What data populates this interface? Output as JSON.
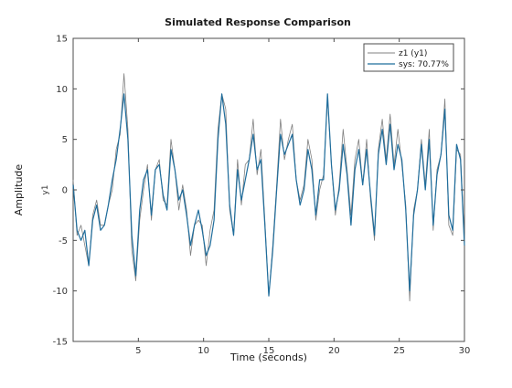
{
  "chart_data": {
    "type": "line",
    "title": "Simulated Response Comparison",
    "xlabel": "Time (seconds)",
    "ylabel": "Amplitude",
    "channel_label": "y1",
    "xlim": [
      0,
      30
    ],
    "ylim": [
      -15,
      15
    ],
    "xticks": [
      5,
      10,
      15,
      20,
      25,
      30
    ],
    "yticks": [
      -15,
      -10,
      -5,
      0,
      5,
      10,
      15
    ],
    "grid": false,
    "legend_position": "top-right",
    "series": [
      {
        "name": "z1 (y1)",
        "color": "#808080",
        "x": [
          0,
          0.3,
          0.6,
          0.9,
          1.2,
          1.5,
          1.8,
          2.1,
          2.4,
          2.7,
          3.0,
          3.3,
          3.6,
          3.9,
          4.2,
          4.5,
          4.8,
          5.1,
          5.4,
          5.7,
          6.0,
          6.3,
          6.6,
          6.9,
          7.2,
          7.5,
          7.8,
          8.1,
          8.4,
          8.7,
          9.0,
          9.3,
          9.6,
          9.9,
          10.2,
          10.5,
          10.8,
          11.1,
          11.4,
          11.7,
          12.0,
          12.3,
          12.6,
          12.9,
          13.2,
          13.5,
          13.8,
          14.1,
          14.4,
          14.7,
          15.0,
          15.3,
          15.6,
          15.9,
          16.2,
          16.5,
          16.8,
          17.1,
          17.4,
          17.7,
          18.0,
          18.3,
          18.6,
          18.9,
          19.2,
          19.5,
          19.8,
          20.1,
          20.4,
          20.7,
          21.0,
          21.3,
          21.6,
          21.9,
          22.2,
          22.5,
          22.8,
          23.1,
          23.4,
          23.7,
          24.0,
          24.3,
          24.6,
          24.9,
          25.2,
          25.5,
          25.8,
          26.1,
          26.4,
          26.7,
          27.0,
          27.3,
          27.6,
          27.9,
          28.2,
          28.5,
          28.8,
          29.1,
          29.4,
          29.7,
          30.0
        ],
        "y": [
          1,
          -4.5,
          -3.5,
          -5.5,
          -7.5,
          -2.5,
          -1,
          -3.5,
          -3.5,
          -1.5,
          0,
          4,
          5.5,
          11.5,
          6,
          -6,
          -9,
          -3,
          0,
          2.5,
          -3,
          2,
          3,
          -1,
          -1.5,
          5,
          2,
          -2,
          0.5,
          -2,
          -6.5,
          -3.5,
          -3,
          -3.5,
          -7.5,
          -4,
          -2,
          6,
          9.5,
          8,
          -2,
          -4.5,
          3,
          -1.5,
          2.5,
          3,
          7,
          1.5,
          4,
          -3,
          -10.5,
          -5.5,
          0.5,
          7,
          3,
          5,
          6.5,
          1,
          -1,
          0.5,
          5,
          3,
          -3,
          0,
          1.5,
          9,
          2.5,
          -2.5,
          0.5,
          6,
          2,
          -2.5,
          3,
          5,
          0.5,
          5,
          -1,
          -5,
          4,
          7,
          3,
          7.5,
          2.5,
          6,
          2.5,
          -1.5,
          -11,
          -2,
          0,
          5,
          0.5,
          6,
          -4,
          2,
          3.5,
          9,
          -3.5,
          -4.5,
          4,
          3.5,
          -5
        ]
      },
      {
        "name": "sys: 70.77%",
        "color": "#1f6d9c",
        "x": [
          0,
          0.3,
          0.6,
          0.9,
          1.2,
          1.5,
          1.8,
          2.1,
          2.4,
          2.7,
          3.0,
          3.3,
          3.6,
          3.9,
          4.2,
          4.5,
          4.8,
          5.1,
          5.4,
          5.7,
          6.0,
          6.3,
          6.6,
          6.9,
          7.2,
          7.5,
          7.8,
          8.1,
          8.4,
          8.7,
          9.0,
          9.3,
          9.6,
          9.9,
          10.2,
          10.5,
          10.8,
          11.1,
          11.4,
          11.7,
          12.0,
          12.3,
          12.6,
          12.9,
          13.2,
          13.5,
          13.8,
          14.1,
          14.4,
          14.7,
          15.0,
          15.3,
          15.6,
          15.9,
          16.2,
          16.5,
          16.8,
          17.1,
          17.4,
          17.7,
          18.0,
          18.3,
          18.6,
          18.9,
          19.2,
          19.5,
          19.8,
          20.1,
          20.4,
          20.7,
          21.0,
          21.3,
          21.6,
          21.9,
          22.2,
          22.5,
          22.8,
          23.1,
          23.4,
          23.7,
          24.0,
          24.3,
          24.6,
          24.9,
          25.2,
          25.5,
          25.8,
          26.1,
          26.4,
          26.7,
          27.0,
          27.3,
          27.6,
          27.9,
          28.2,
          28.5,
          28.8,
          29.1,
          29.4,
          29.7,
          30.0
        ],
        "y": [
          0.5,
          -4,
          -5,
          -4,
          -7.5,
          -3,
          -1.5,
          -4,
          -3.5,
          -1.5,
          1,
          3,
          6,
          9.5,
          5,
          -4.5,
          -8.5,
          -2,
          1,
          2,
          -2.5,
          2,
          2.5,
          -0.5,
          -2,
          4,
          2,
          -1,
          0,
          -2.5,
          -5.5,
          -3.5,
          -2,
          -4,
          -6.5,
          -5.5,
          -3,
          5,
          9.5,
          6.5,
          -1.5,
          -4.5,
          2,
          -1,
          1,
          3,
          5.5,
          2,
          3,
          -3.5,
          -10.5,
          -6,
          0,
          5.5,
          3.5,
          4.5,
          5.5,
          1,
          -1.5,
          0,
          4,
          2,
          -2.5,
          1,
          1,
          9.5,
          2.5,
          -2,
          0,
          4.5,
          1.5,
          -3.5,
          2,
          4,
          0.5,
          4,
          -0.5,
          -4.5,
          3.5,
          6,
          2.5,
          6.5,
          2,
          4.5,
          3,
          -2,
          -10,
          -2.5,
          0,
          4.5,
          0,
          5,
          -3.5,
          1.5,
          3.5,
          8,
          -2.5,
          -4,
          4.5,
          3,
          -5.5
        ]
      }
    ]
  }
}
